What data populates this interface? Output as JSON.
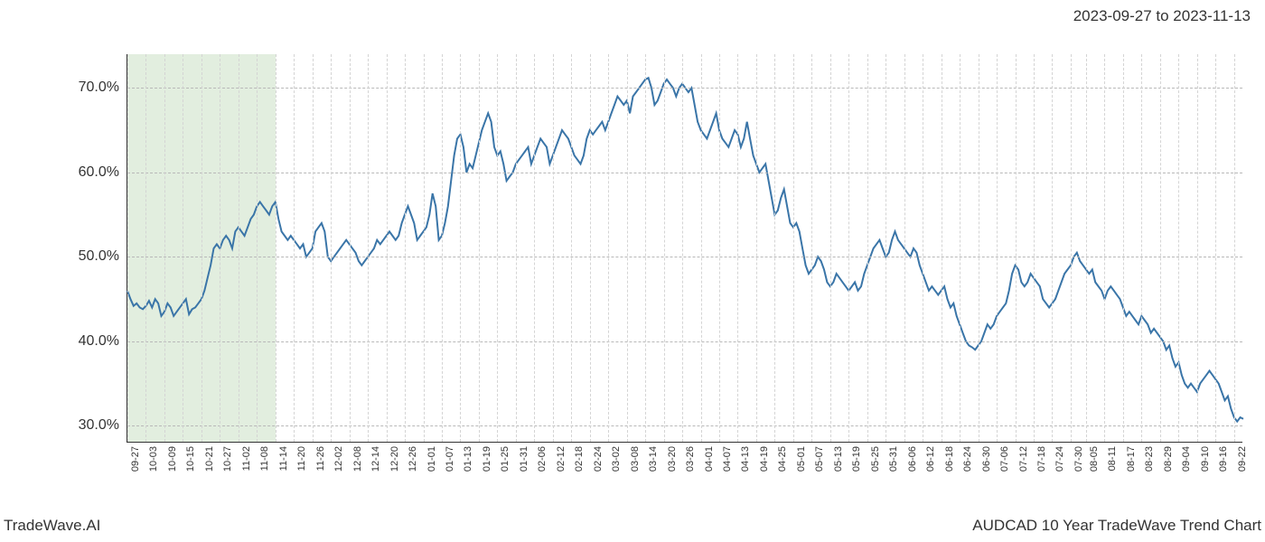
{
  "header": {
    "date_range": "2023-09-27 to 2023-11-13"
  },
  "footer": {
    "left": "TradeWave.AI",
    "right": "AUDCAD 10 Year TradeWave Trend Chart"
  },
  "chart": {
    "type": "line",
    "background_color": "#ffffff",
    "line_color": "#3a75a8",
    "line_width": 2,
    "grid_color_major": "#b8b8b8",
    "grid_color_minor": "#d4d4d4",
    "axis_color": "#333333",
    "highlight_fill": "rgba(141,186,127,0.25)",
    "tick_label_color": "#333333",
    "y_tick_fontsize": 16,
    "x_tick_fontsize": 11,
    "ylim": [
      28,
      74
    ],
    "y_ticks": [
      30,
      40,
      50,
      60,
      70
    ],
    "y_tick_labels": [
      "30.0%",
      "40.0%",
      "50.0%",
      "60.0%",
      "70.0%"
    ],
    "highlight_x_range": [
      "09-27",
      "11-14"
    ],
    "x_ticks": [
      "09-27",
      "10-03",
      "10-09",
      "10-15",
      "10-21",
      "10-27",
      "11-02",
      "11-08",
      "11-14",
      "11-20",
      "11-26",
      "12-02",
      "12-08",
      "12-14",
      "12-20",
      "12-26",
      "01-01",
      "01-07",
      "01-13",
      "01-19",
      "01-25",
      "01-31",
      "02-06",
      "02-12",
      "02-18",
      "02-24",
      "03-02",
      "03-08",
      "03-14",
      "03-20",
      "03-26",
      "04-01",
      "04-07",
      "04-13",
      "04-19",
      "04-25",
      "05-01",
      "05-07",
      "05-13",
      "05-19",
      "05-25",
      "05-31",
      "06-06",
      "06-12",
      "06-18",
      "06-24",
      "06-30",
      "07-06",
      "07-12",
      "07-18",
      "07-24",
      "07-30",
      "08-05",
      "08-11",
      "08-17",
      "08-23",
      "08-29",
      "09-04",
      "09-10",
      "09-16",
      "09-22"
    ],
    "series": [
      {
        "name": "AUDCAD_10Y_Trend",
        "x": [
          "09-27",
          "09-28",
          "09-29",
          "09-30",
          "10-01",
          "10-02",
          "10-03",
          "10-04",
          "10-05",
          "10-06",
          "10-07",
          "10-08",
          "10-09",
          "10-10",
          "10-11",
          "10-12",
          "10-13",
          "10-14",
          "10-15",
          "10-16",
          "10-17",
          "10-18",
          "10-19",
          "10-20",
          "10-21",
          "10-22",
          "10-23",
          "10-24",
          "10-25",
          "10-26",
          "10-27",
          "10-28",
          "10-29",
          "10-30",
          "10-31",
          "11-01",
          "11-02",
          "11-03",
          "11-04",
          "11-05",
          "11-06",
          "11-07",
          "11-08",
          "11-09",
          "11-10",
          "11-11",
          "11-12",
          "11-13",
          "11-14",
          "11-15",
          "11-16",
          "11-17",
          "11-18",
          "11-19",
          "11-20",
          "11-21",
          "11-22",
          "11-23",
          "11-24",
          "11-25",
          "11-26",
          "11-27",
          "11-28",
          "11-29",
          "11-30",
          "12-01",
          "12-02",
          "12-03",
          "12-04",
          "12-05",
          "12-06",
          "12-07",
          "12-08",
          "12-09",
          "12-10",
          "12-11",
          "12-12",
          "12-13",
          "12-14",
          "12-15",
          "12-16",
          "12-17",
          "12-18",
          "12-19",
          "12-20",
          "12-21",
          "12-22",
          "12-23",
          "12-24",
          "12-25",
          "12-26",
          "12-27",
          "12-28",
          "12-29",
          "12-30",
          "12-31",
          "01-01",
          "01-02",
          "01-03",
          "01-04",
          "01-05",
          "01-06",
          "01-07",
          "01-08",
          "01-09",
          "01-10",
          "01-11",
          "01-12",
          "01-13",
          "01-14",
          "01-15",
          "01-16",
          "01-17",
          "01-18",
          "01-19",
          "01-20",
          "01-21",
          "01-22",
          "01-23",
          "01-24",
          "01-25",
          "01-26",
          "01-27",
          "01-28",
          "01-29",
          "01-30",
          "01-31",
          "02-01",
          "02-02",
          "02-03",
          "02-04",
          "02-05",
          "02-06",
          "02-07",
          "02-08",
          "02-09",
          "02-10",
          "02-11",
          "02-12",
          "02-13",
          "02-14",
          "02-15",
          "02-16",
          "02-17",
          "02-18",
          "02-19",
          "02-20",
          "02-21",
          "02-22",
          "02-23",
          "02-24",
          "02-25",
          "02-26",
          "02-27",
          "02-28",
          "03-01",
          "03-02",
          "03-03",
          "03-04",
          "03-05",
          "03-06",
          "03-07",
          "03-08",
          "03-09",
          "03-10",
          "03-11",
          "03-12",
          "03-13",
          "03-14",
          "03-15",
          "03-16",
          "03-17",
          "03-18",
          "03-19",
          "03-20",
          "03-21",
          "03-22",
          "03-23",
          "03-24",
          "03-25",
          "03-26",
          "03-27",
          "03-28",
          "03-29",
          "03-30",
          "03-31",
          "04-01",
          "04-02",
          "04-03",
          "04-04",
          "04-05",
          "04-06",
          "04-07",
          "04-08",
          "04-09",
          "04-10",
          "04-11",
          "04-12",
          "04-13",
          "04-14",
          "04-15",
          "04-16",
          "04-17",
          "04-18",
          "04-19",
          "04-20",
          "04-21",
          "04-22",
          "04-23",
          "04-24",
          "04-25",
          "04-26",
          "04-27",
          "04-28",
          "04-29",
          "04-30",
          "05-01",
          "05-02",
          "05-03",
          "05-04",
          "05-05",
          "05-06",
          "05-07",
          "05-08",
          "05-09",
          "05-10",
          "05-11",
          "05-12",
          "05-13",
          "05-14",
          "05-15",
          "05-16",
          "05-17",
          "05-18",
          "05-19",
          "05-20",
          "05-21",
          "05-22",
          "05-23",
          "05-24",
          "05-25",
          "05-26",
          "05-27",
          "05-28",
          "05-29",
          "05-30",
          "05-31",
          "06-01",
          "06-02",
          "06-03",
          "06-04",
          "06-05",
          "06-06",
          "06-07",
          "06-08",
          "06-09",
          "06-10",
          "06-11",
          "06-12",
          "06-13",
          "06-14",
          "06-15",
          "06-16",
          "06-17",
          "06-18",
          "06-19",
          "06-20",
          "06-21",
          "06-22",
          "06-23",
          "06-24",
          "06-25",
          "06-26",
          "06-27",
          "06-28",
          "06-29",
          "06-30",
          "07-01",
          "07-02",
          "07-03",
          "07-04",
          "07-05",
          "07-06",
          "07-07",
          "07-08",
          "07-09",
          "07-10",
          "07-11",
          "07-12",
          "07-13",
          "07-14",
          "07-15",
          "07-16",
          "07-17",
          "07-18",
          "07-19",
          "07-20",
          "07-21",
          "07-22",
          "07-23",
          "07-24",
          "07-25",
          "07-26",
          "07-27",
          "07-28",
          "07-29",
          "07-30",
          "08-01",
          "08-02",
          "08-03",
          "08-04",
          "08-05",
          "08-06",
          "08-07",
          "08-08",
          "08-09",
          "08-10",
          "08-11",
          "08-12",
          "08-13",
          "08-14",
          "08-15",
          "08-16",
          "08-17",
          "08-18",
          "08-19",
          "08-20",
          "08-21",
          "08-22",
          "08-23",
          "08-24",
          "08-25",
          "08-26",
          "08-27",
          "08-28",
          "08-29",
          "08-30",
          "08-31",
          "09-01",
          "09-02",
          "09-03",
          "09-04",
          "09-05",
          "09-06",
          "09-07",
          "09-08",
          "09-09",
          "09-10",
          "09-11",
          "09-12",
          "09-13",
          "09-14",
          "09-15",
          "09-16",
          "09-17",
          "09-18",
          "09-19",
          "09-20",
          "09-21",
          "09-22",
          "09-23",
          "09-24",
          "09-25"
        ],
        "y": [
          46.0,
          45.0,
          44.2,
          44.5,
          44.0,
          43.8,
          44.2,
          44.8,
          44.0,
          45.0,
          44.5,
          43.0,
          43.5,
          44.5,
          44.0,
          43.0,
          43.5,
          44.0,
          44.5,
          45.0,
          43.2,
          43.8,
          44.0,
          44.5,
          45.0,
          46.0,
          47.5,
          49.0,
          51.0,
          51.5,
          51.0,
          52.0,
          52.5,
          52.0,
          51.0,
          53.0,
          53.5,
          53.0,
          52.5,
          53.5,
          54.5,
          55.0,
          56.0,
          56.5,
          56.0,
          55.5,
          55.0,
          56.0,
          56.5,
          54.5,
          53.0,
          52.5,
          52.0,
          52.5,
          52.0,
          51.5,
          51.0,
          51.5,
          50.0,
          50.5,
          51.0,
          53.0,
          53.5,
          54.0,
          53.0,
          50.0,
          49.5,
          50.0,
          50.5,
          51.0,
          51.5,
          52.0,
          51.5,
          51.0,
          50.5,
          49.5,
          49.0,
          49.5,
          50.0,
          50.5,
          51.0,
          52.0,
          51.5,
          52.0,
          52.5,
          53.0,
          52.5,
          52.0,
          52.5,
          54.0,
          55.0,
          56.0,
          55.0,
          54.0,
          52.0,
          52.5,
          53.0,
          53.5,
          55.0,
          57.5,
          56.0,
          52.0,
          52.5,
          54.0,
          56.0,
          59.0,
          62.0,
          64.0,
          64.5,
          63.0,
          60.0,
          61.0,
          60.5,
          62.0,
          63.5,
          65.0,
          66.0,
          67.0,
          66.0,
          63.0,
          62.0,
          62.5,
          61.0,
          59.0,
          59.5,
          60.0,
          61.0,
          61.5,
          62.0,
          62.5,
          63.0,
          61.0,
          62.0,
          63.0,
          64.0,
          63.5,
          63.0,
          61.0,
          62.0,
          63.0,
          64.0,
          65.0,
          64.5,
          64.0,
          63.0,
          62.0,
          61.5,
          61.0,
          62.0,
          64.0,
          65.0,
          64.5,
          65.0,
          65.5,
          66.0,
          65.0,
          66.0,
          67.0,
          68.0,
          69.0,
          68.5,
          68.0,
          68.5,
          67.0,
          69.0,
          69.5,
          70.0,
          70.5,
          71.0,
          71.2,
          70.0,
          68.0,
          68.5,
          69.5,
          70.5,
          71.0,
          70.5,
          70.0,
          69.0,
          70.0,
          70.5,
          70.0,
          69.5,
          70.0,
          68.0,
          66.0,
          65.0,
          64.5,
          64.0,
          65.0,
          66.0,
          67.0,
          65.0,
          64.0,
          63.5,
          63.0,
          64.0,
          65.0,
          64.5,
          63.0,
          64.0,
          66.0,
          64.0,
          62.0,
          61.0,
          60.0,
          60.5,
          61.0,
          59.0,
          57.0,
          55.0,
          55.5,
          57.0,
          58.0,
          56.0,
          54.0,
          53.5,
          54.0,
          53.0,
          51.0,
          49.0,
          48.0,
          48.5,
          49.0,
          50.0,
          49.5,
          48.5,
          47.0,
          46.5,
          47.0,
          48.0,
          47.5,
          47.0,
          46.5,
          46.0,
          46.5,
          47.0,
          46.0,
          46.5,
          48.0,
          49.0,
          50.0,
          51.0,
          51.5,
          52.0,
          51.0,
          50.0,
          50.5,
          52.0,
          53.0,
          52.0,
          51.5,
          51.0,
          50.5,
          50.0,
          51.0,
          50.5,
          49.0,
          48.0,
          47.0,
          46.0,
          46.5,
          46.0,
          45.5,
          46.0,
          46.5,
          45.0,
          44.0,
          44.5,
          43.0,
          42.0,
          41.0,
          40.0,
          39.5,
          39.3,
          39.0,
          39.5,
          40.0,
          41.0,
          42.0,
          41.5,
          42.0,
          43.0,
          43.5,
          44.0,
          44.5,
          46.0,
          48.0,
          49.0,
          48.5,
          47.0,
          46.5,
          47.0,
          48.0,
          47.5,
          47.0,
          46.5,
          45.0,
          44.5,
          44.0,
          44.5,
          45.0,
          46.0,
          47.0,
          48.0,
          48.5,
          49.0,
          50.0,
          50.5,
          49.5,
          49.0,
          48.5,
          48.0,
          48.5,
          47.0,
          46.5,
          46.0,
          45.0,
          46.0,
          46.5,
          46.0,
          45.5,
          45.0,
          44.0,
          43.0,
          43.5,
          43.0,
          42.5,
          42.0,
          43.0,
          42.5,
          42.0,
          41.0,
          41.5,
          41.0,
          40.5,
          40.0,
          39.0,
          39.5,
          38.0,
          37.0,
          37.5,
          36.0,
          35.0,
          34.5,
          35.0,
          34.5,
          34.0,
          35.0,
          35.5,
          36.0,
          36.5,
          36.0,
          35.5,
          35.0,
          34.0,
          33.0,
          33.5,
          32.0,
          31.0,
          30.5,
          31.0,
          30.8
        ]
      }
    ]
  }
}
